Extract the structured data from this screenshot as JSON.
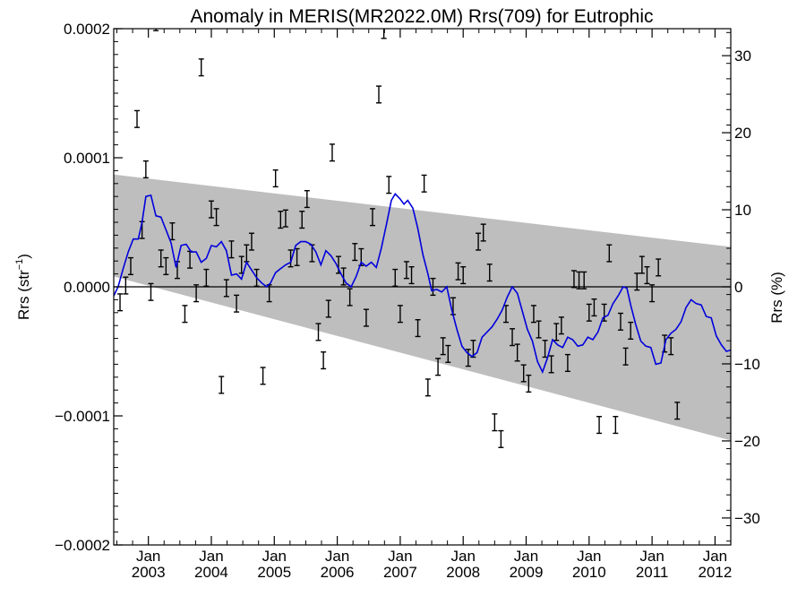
{
  "chart_data": {
    "type": "scatter",
    "title": "Anomaly in MERIS(MR2022.0M) Rrs(709) for Eutrophic",
    "ylabel_left": "Rrs (str",
    "ylabel_left_superscript": "−1",
    "ylabel_left_suffix": ")",
    "ylabel_right": "Rrs (%)",
    "xlim": [
      2002.45,
      2012.25
    ],
    "ylim": [
      -0.0002,
      0.0002
    ],
    "ylim_right": [
      -33.5,
      33.5
    ],
    "yticks_left": [
      {
        "value": 0.0002,
        "label": "0.0002"
      },
      {
        "value": 0.0001,
        "label": "0.0001"
      },
      {
        "value": 0.0,
        "label": "0.0000"
      },
      {
        "value": -0.0001,
        "label": "−0.0001"
      },
      {
        "value": -0.0002,
        "label": "−0.0002"
      }
    ],
    "yticks_right": [
      {
        "value": 30,
        "label": "30"
      },
      {
        "value": 20,
        "label": "20"
      },
      {
        "value": 10,
        "label": "10"
      },
      {
        "value": 0,
        "label": "0"
      },
      {
        "value": -10,
        "label": "−10"
      },
      {
        "value": -20,
        "label": "−20"
      },
      {
        "value": -30,
        "label": "−30"
      }
    ],
    "xticks": [
      {
        "value": 2003.0,
        "month": "Jan",
        "year": "2003"
      },
      {
        "value": 2004.0,
        "month": "Jan",
        "year": "2004"
      },
      {
        "value": 2005.0,
        "month": "Jan",
        "year": "2005"
      },
      {
        "value": 2006.0,
        "month": "Jan",
        "year": "2006"
      },
      {
        "value": 2007.0,
        "month": "Jan",
        "year": "2007"
      },
      {
        "value": 2008.0,
        "month": "Jan",
        "year": "2008"
      },
      {
        "value": 2009.0,
        "month": "Jan",
        "year": "2009"
      },
      {
        "value": 2010.0,
        "month": "Jan",
        "year": "2010"
      },
      {
        "value": 2011.0,
        "month": "Jan",
        "year": "2011"
      },
      {
        "value": 2012.0,
        "month": "Jan",
        "year": "2012"
      }
    ],
    "trend_band": {
      "color": "#bebebe",
      "upper": [
        [
          2002.45,
          8.7e-05
        ],
        [
          2012.25,
          3.1e-05
        ]
      ],
      "lower": [
        [
          2002.45,
          8e-06
        ],
        [
          2012.25,
          -0.000119
        ]
      ]
    },
    "zero_line": 0.0,
    "running_mean": {
      "color": "#0000dd",
      "points": [
        [
          2002.45,
          -7e-06
        ],
        [
          2002.52,
          0.0
        ],
        [
          2002.6,
          1.4e-05
        ],
        [
          2002.68,
          2.7e-05
        ],
        [
          2002.76,
          3.7e-05
        ],
        [
          2002.84,
          3.7e-05
        ],
        [
          2002.9,
          5e-05
        ],
        [
          2002.96,
          7e-05
        ],
        [
          2003.04,
          7.1e-05
        ],
        [
          2003.12,
          5.5e-05
        ],
        [
          2003.2,
          5.4e-05
        ],
        [
          2003.28,
          4.4e-05
        ],
        [
          2003.36,
          3.4e-05
        ],
        [
          2003.44,
          1.5e-05
        ],
        [
          2003.52,
          3.2e-05
        ],
        [
          2003.6,
          3.3e-05
        ],
        [
          2003.68,
          2.7e-05
        ],
        [
          2003.76,
          2.7e-05
        ],
        [
          2003.84,
          1.9e-05
        ],
        [
          2003.92,
          2.2e-05
        ],
        [
          2004.0,
          3.2e-05
        ],
        [
          2004.08,
          3.1e-05
        ],
        [
          2004.16,
          3.5e-05
        ],
        [
          2004.24,
          2.8e-05
        ],
        [
          2004.32,
          9e-06
        ],
        [
          2004.4,
          1e-05
        ],
        [
          2004.48,
          6e-06
        ],
        [
          2004.56,
          1.9e-05
        ],
        [
          2004.64,
          1.3e-05
        ],
        [
          2004.72,
          7e-06
        ],
        [
          2004.8,
          3e-06
        ],
        [
          2004.88,
          0.0
        ],
        [
          2004.94,
          3e-06
        ],
        [
          2005.02,
          1.1e-05
        ],
        [
          2005.1,
          1.4e-05
        ],
        [
          2005.18,
          1.7e-05
        ],
        [
          2005.26,
          1.9e-05
        ],
        [
          2005.34,
          3.2e-05
        ],
        [
          2005.42,
          3.5e-05
        ],
        [
          2005.5,
          3.5e-05
        ],
        [
          2005.58,
          3.3e-05
        ],
        [
          2005.66,
          2.7e-05
        ],
        [
          2005.74,
          1.7e-05
        ],
        [
          2005.82,
          2.8e-05
        ],
        [
          2005.9,
          2.4e-05
        ],
        [
          2005.98,
          1.8e-05
        ],
        [
          2006.06,
          1e-05
        ],
        [
          2006.14,
          3e-06
        ],
        [
          2006.22,
          0.0
        ],
        [
          2006.3,
          8e-06
        ],
        [
          2006.38,
          1.9e-05
        ],
        [
          2006.46,
          1.6e-05
        ],
        [
          2006.54,
          1.9e-05
        ],
        [
          2006.62,
          1.5e-05
        ],
        [
          2006.7,
          3e-05
        ],
        [
          2006.78,
          4.8e-05
        ],
        [
          2006.86,
          6.7e-05
        ],
        [
          2006.92,
          7.2e-05
        ],
        [
          2007.0,
          6.8e-05
        ],
        [
          2007.06,
          6.4e-05
        ],
        [
          2007.12,
          6.7e-05
        ],
        [
          2007.2,
          6.1e-05
        ],
        [
          2007.28,
          4.5e-05
        ],
        [
          2007.36,
          2.5e-05
        ],
        [
          2007.44,
          1e-05
        ],
        [
          2007.5,
          -3e-06
        ],
        [
          2007.58,
          -2e-06
        ],
        [
          2007.66,
          -4e-06
        ],
        [
          2007.74,
          0.0
        ],
        [
          2007.82,
          -1.8e-05
        ],
        [
          2007.9,
          -3.3e-05
        ],
        [
          2007.98,
          -4.6e-05
        ],
        [
          2008.06,
          -5.1e-05
        ],
        [
          2008.14,
          -5.4e-05
        ],
        [
          2008.22,
          -5.1e-05
        ],
        [
          2008.3,
          -3.9e-05
        ],
        [
          2008.38,
          -3.5e-05
        ],
        [
          2008.46,
          -3.1e-05
        ],
        [
          2008.54,
          -2.5e-05
        ],
        [
          2008.62,
          -1.8e-05
        ],
        [
          2008.7,
          -8e-06
        ],
        [
          2008.78,
          0.0
        ],
        [
          2008.86,
          -5e-06
        ],
        [
          2008.94,
          -1.9e-05
        ],
        [
          2009.02,
          -3.3e-05
        ],
        [
          2009.1,
          -4.2e-05
        ],
        [
          2009.18,
          -5.8e-05
        ],
        [
          2009.26,
          -6.6e-05
        ],
        [
          2009.34,
          -5.5e-05
        ],
        [
          2009.42,
          -4.1e-05
        ],
        [
          2009.5,
          -4.5e-05
        ],
        [
          2009.58,
          -4.7e-05
        ],
        [
          2009.66,
          -3.9e-05
        ],
        [
          2009.74,
          -4.1e-05
        ],
        [
          2009.82,
          -4.6e-05
        ],
        [
          2009.9,
          -4.5e-05
        ],
        [
          2009.98,
          -3.9e-05
        ],
        [
          2010.06,
          -4.1e-05
        ],
        [
          2010.14,
          -3.5e-05
        ],
        [
          2010.22,
          -2.4e-05
        ],
        [
          2010.3,
          -2.2e-05
        ],
        [
          2010.38,
          -1.3e-05
        ],
        [
          2010.46,
          -7e-06
        ],
        [
          2010.54,
          0.0
        ],
        [
          2010.6,
          -1e-06
        ],
        [
          2010.66,
          -1.4e-05
        ],
        [
          2010.74,
          -2.9e-05
        ],
        [
          2010.82,
          -4.2e-05
        ],
        [
          2010.9,
          -4.6e-05
        ],
        [
          2010.98,
          -4.7e-05
        ],
        [
          2011.06,
          -6e-05
        ],
        [
          2011.14,
          -5.9e-05
        ],
        [
          2011.22,
          -4.1e-05
        ],
        [
          2011.3,
          -3.6e-05
        ],
        [
          2011.38,
          -3.3e-05
        ],
        [
          2011.46,
          -2.7e-05
        ],
        [
          2011.54,
          -1.6e-05
        ],
        [
          2011.62,
          -1e-05
        ],
        [
          2011.7,
          -1.3e-05
        ],
        [
          2011.78,
          -1.4e-05
        ],
        [
          2011.86,
          -2.3e-05
        ],
        [
          2011.94,
          -2.4e-05
        ],
        [
          2012.02,
          -3.8e-05
        ],
        [
          2012.1,
          -4.5e-05
        ],
        [
          2012.18,
          -5e-05
        ],
        [
          2012.25,
          -4.9e-05
        ]
      ]
    },
    "monthly_points": {
      "color": "#000000",
      "error_halfwidth": 6.5e-06,
      "points": [
        [
          2002.55,
          -1.2e-05
        ],
        [
          2002.64,
          1e-06
        ],
        [
          2002.72,
          1.6e-05
        ],
        [
          2002.82,
          0.00013
        ],
        [
          2002.9,
          4.4e-05
        ],
        [
          2002.96,
          9.1e-05
        ],
        [
          2003.04,
          -4e-06
        ],
        [
          2003.12,
          0.000205
        ],
        [
          2003.2,
          2.2e-05
        ],
        [
          2003.28,
          1.6e-05
        ],
        [
          2003.38,
          4.3e-05
        ],
        [
          2003.46,
          1.3e-05
        ],
        [
          2003.58,
          -2.1e-05
        ],
        [
          2003.66,
          2.1e-05
        ],
        [
          2003.76,
          -5e-06
        ],
        [
          2003.84,
          0.00017
        ],
        [
          2003.92,
          7e-06
        ],
        [
          2004.0,
          6e-05
        ],
        [
          2004.08,
          5.4e-05
        ],
        [
          2004.16,
          -7.6e-05
        ],
        [
          2004.24,
          -1e-06
        ],
        [
          2004.32,
          2.9e-05
        ],
        [
          2004.4,
          -1.3e-05
        ],
        [
          2004.48,
          1.7e-05
        ],
        [
          2004.56,
          2.6e-05
        ],
        [
          2004.64,
          3.5e-05
        ],
        [
          2004.72,
          7e-06
        ],
        [
          2004.82,
          -6.9e-05
        ],
        [
          2004.92,
          -5e-06
        ],
        [
          2005.02,
          8.4e-05
        ],
        [
          2005.1,
          5.2e-05
        ],
        [
          2005.18,
          5.3e-05
        ],
        [
          2005.26,
          2.2e-05
        ],
        [
          2005.36,
          2.3e-05
        ],
        [
          2005.44,
          5.2e-05
        ],
        [
          2005.52,
          6.8e-05
        ],
        [
          2005.6,
          2.6e-05
        ],
        [
          2005.7,
          -3.5e-05
        ],
        [
          2005.78,
          -5.7e-05
        ],
        [
          2005.86,
          -1.7e-05
        ],
        [
          2005.92,
          0.000104
        ],
        [
          2006.02,
          1.7e-05
        ],
        [
          2006.1,
          8e-06
        ],
        [
          2006.2,
          -8e-06
        ],
        [
          2006.28,
          2.7e-05
        ],
        [
          2006.38,
          2.3e-05
        ],
        [
          2006.46,
          -2.4e-05
        ],
        [
          2006.56,
          5.4e-05
        ],
        [
          2006.66,
          0.000149
        ],
        [
          2006.74,
          0.000199
        ],
        [
          2006.82,
          7.9e-05
        ],
        [
          2006.92,
          7e-06
        ],
        [
          2007.0,
          -2.1e-05
        ],
        [
          2007.1,
          1.3e-05
        ],
        [
          2007.18,
          9e-06
        ],
        [
          2007.28,
          -3.2e-05
        ],
        [
          2007.38,
          8e-05
        ],
        [
          2007.44,
          -7.8e-05
        ],
        [
          2007.52,
          0.0
        ],
        [
          2007.6,
          -6.2e-05
        ],
        [
          2007.68,
          -4.6e-05
        ],
        [
          2007.76,
          -5.2e-05
        ],
        [
          2007.84,
          -1.5e-05
        ],
        [
          2007.92,
          1.2e-05
        ],
        [
          2008.0,
          9e-06
        ],
        [
          2008.08,
          -5.5e-05
        ],
        [
          2008.16,
          -4.8e-05
        ],
        [
          2008.24,
          3.5e-05
        ],
        [
          2008.32,
          4.2e-05
        ],
        [
          2008.42,
          1.1e-05
        ],
        [
          2008.5,
          -0.000105
        ],
        [
          2008.6,
          -0.000118
        ],
        [
          2008.68,
          -2.1e-05
        ],
        [
          2008.78,
          -3.9e-05
        ],
        [
          2008.86,
          -5.1e-05
        ],
        [
          2008.96,
          -6.7e-05
        ],
        [
          2009.04,
          -7.5e-05
        ],
        [
          2009.12,
          -2.1e-05
        ],
        [
          2009.2,
          -3.3e-05
        ],
        [
          2009.3,
          -4.8e-05
        ],
        [
          2009.4,
          -6e-05
        ],
        [
          2009.48,
          -3.5e-05
        ],
        [
          2009.56,
          -3e-05
        ],
        [
          2009.66,
          -5.9e-05
        ],
        [
          2009.76,
          6e-06
        ],
        [
          2009.84,
          5e-06
        ],
        [
          2009.92,
          5e-06
        ],
        [
          2010.0,
          -2e-05
        ],
        [
          2010.08,
          -1.6e-05
        ],
        [
          2010.16,
          -0.000107
        ],
        [
          2010.24,
          -2e-05
        ],
        [
          2010.32,
          2.6e-05
        ],
        [
          2010.42,
          -0.000107
        ],
        [
          2010.5,
          -2.7e-05
        ],
        [
          2010.58,
          -5.4e-05
        ],
        [
          2010.66,
          -3.4e-05
        ],
        [
          2010.76,
          4e-06
        ],
        [
          2010.84,
          1.7e-05
        ],
        [
          2010.92,
          9e-06
        ],
        [
          2011.0,
          -5e-06
        ],
        [
          2011.1,
          1.5e-05
        ],
        [
          2011.2,
          -4.4e-05
        ],
        [
          2011.3,
          -4.6e-05
        ],
        [
          2011.4,
          -9.6e-05
        ]
      ]
    },
    "notes": [
      "Monthly points are drawn as small error bars (I-shaped). A blue running mean overlays the points. A grey shaded band indicates the trend envelope. Left axis in str^-1, right axis in percent."
    ]
  }
}
